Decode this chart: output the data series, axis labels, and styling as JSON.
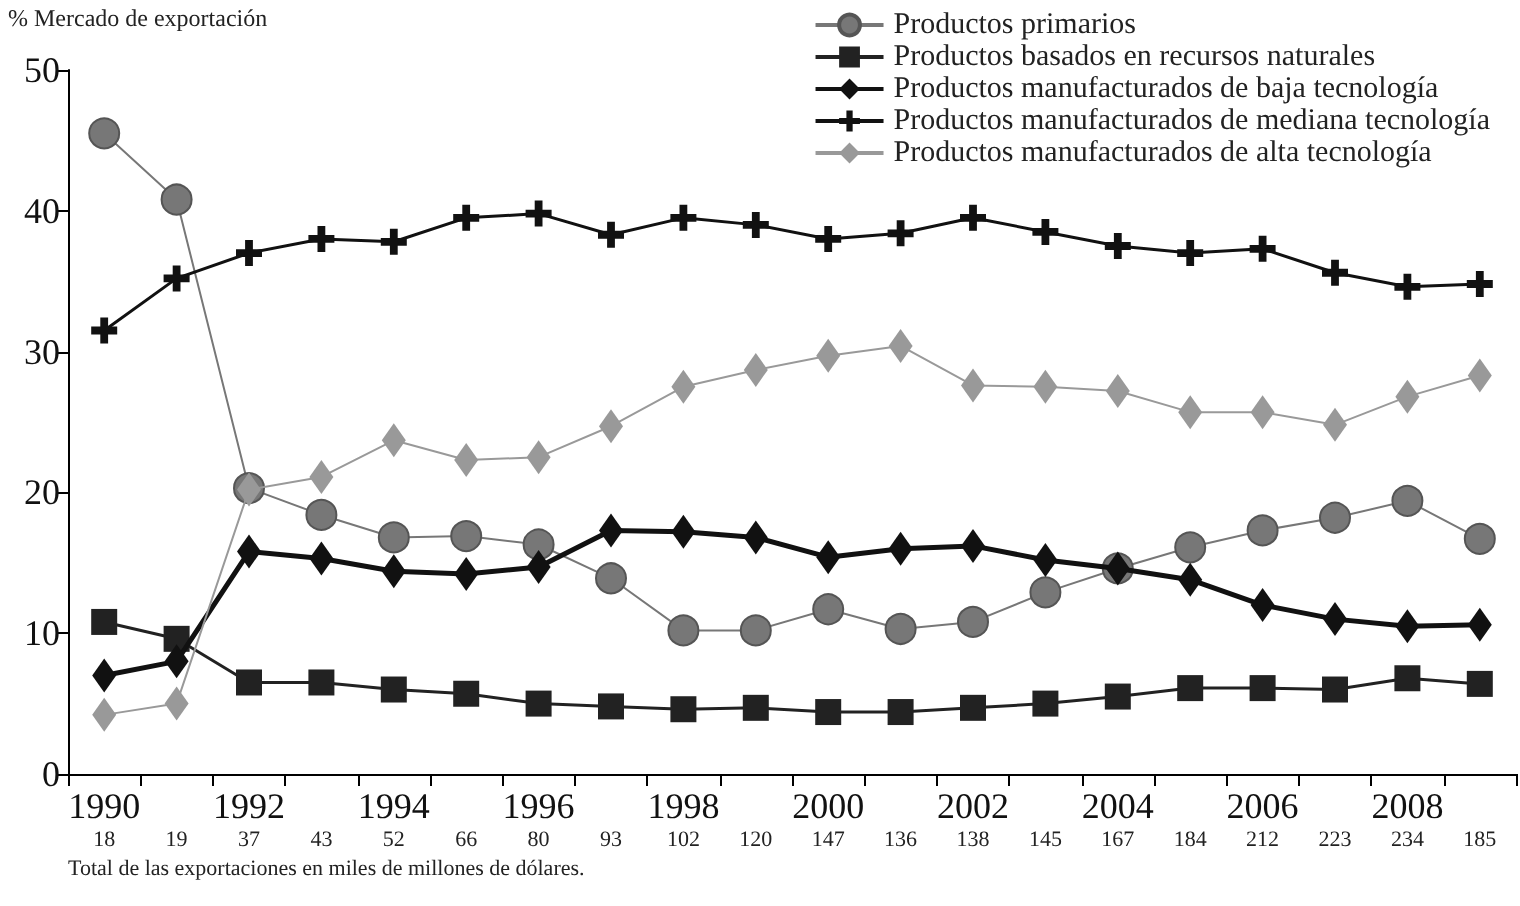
{
  "chart_data": {
    "type": "line",
    "ylabel": "% Mercado de exportación",
    "xlabel": "Total de las exportaciones en miles de millones de dólares.",
    "categories": [
      "1990\n18",
      "19",
      "1992\n37",
      "43",
      "1994\n52",
      "66",
      "1996\n80",
      "93",
      "1998\n102",
      "120",
      "2000\n147",
      "136",
      "2002\n138",
      "145",
      "2004\n167",
      "184",
      "2006\n212",
      "223",
      "2008\n234",
      "185"
    ],
    "series": [
      {
        "name": "Productos primarios",
        "color": "#777777",
        "marker": "circle",
        "values": [
          45.5,
          40.8,
          20.3,
          18.4,
          16.8,
          16.9,
          16.3,
          13.9,
          10.2,
          10.2,
          11.7,
          10.3,
          10.8,
          12.9,
          14.6,
          16.1,
          17.3,
          18.2,
          19.4,
          16.7
        ]
      },
      {
        "name": "Productos basados en recursos naturales",
        "color": "#222222",
        "marker": "square",
        "values": [
          10.8,
          9.6,
          6.5,
          6.5,
          6.0,
          5.7,
          5.0,
          4.8,
          4.6,
          4.7,
          4.4,
          4.4,
          4.7,
          5.0,
          5.5,
          6.1,
          6.1,
          6.0,
          6.8,
          6.4
        ]
      },
      {
        "name": "Productos manufacturados de baja tecnología",
        "color": "#111111",
        "marker": "diamond",
        "values": [
          7.0,
          8.0,
          15.8,
          15.3,
          14.4,
          14.2,
          14.7,
          17.3,
          17.2,
          16.8,
          15.4,
          16.0,
          16.2,
          15.2,
          14.6,
          13.8,
          12.0,
          11.0,
          10.5,
          10.6
        ]
      },
      {
        "name": "Productos manufacturados de mediana tecnología",
        "color": "#111111",
        "marker": "cross",
        "values": [
          31.5,
          35.2,
          37.0,
          38.0,
          37.8,
          39.5,
          39.8,
          38.3,
          39.5,
          39.0,
          38.0,
          38.4,
          39.5,
          38.5,
          37.5,
          37.0,
          37.3,
          35.6,
          34.6,
          34.8
        ]
      },
      {
        "name": "Productos manufacturados de alta tecnología",
        "color": "#999999",
        "marker": "diamond",
        "values": [
          4.2,
          5.0,
          20.2,
          21.1,
          23.7,
          22.3,
          22.5,
          24.7,
          27.5,
          28.7,
          29.7,
          30.4,
          27.6,
          27.5,
          27.2,
          25.7,
          25.7,
          24.8,
          26.8,
          28.3
        ]
      }
    ],
    "ylim": [
      0,
      50
    ],
    "yticks": [
      0,
      10,
      20,
      30,
      40,
      50
    ],
    "grid": false,
    "legend": "top right"
  }
}
